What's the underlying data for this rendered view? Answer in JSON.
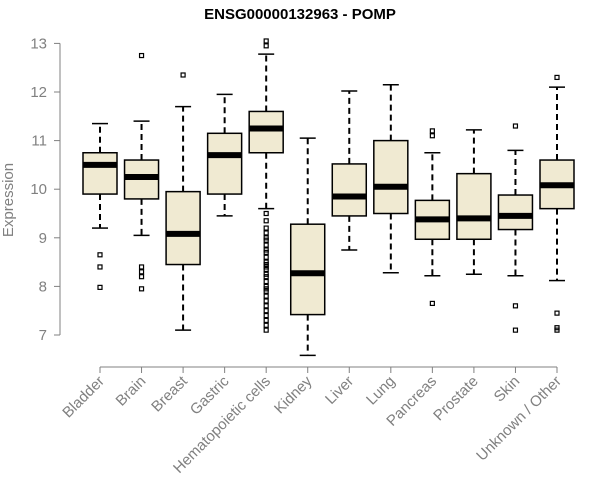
{
  "chart_data": {
    "type": "box",
    "title": "ENSG00000132963 - POMP",
    "xlabel": "",
    "ylabel": "Expression",
    "ylim": [
      6.55,
      13.2
    ],
    "yticks": [
      7,
      8,
      9,
      10,
      11,
      12,
      13
    ],
    "grid": false,
    "box_fill": "#f0ead2",
    "categories": [
      "Bladder",
      "Brain",
      "Breast",
      "Gastric",
      "Hematopoietic cells",
      "Kidney",
      "Liver",
      "Lung",
      "Pancreas",
      "Prostate",
      "Skin",
      "Unknown / Other"
    ],
    "boxes": [
      {
        "whisker_low": 9.2,
        "q1": 9.9,
        "median": 10.5,
        "q3": 10.75,
        "whisker_high": 11.35,
        "outliers": [
          8.65,
          8.4,
          7.98
        ]
      },
      {
        "whisker_low": 9.05,
        "q1": 9.8,
        "median": 10.25,
        "q3": 10.6,
        "whisker_high": 11.4,
        "outliers": [
          12.75,
          8.4,
          8.3,
          8.2,
          7.95
        ]
      },
      {
        "whisker_low": 7.1,
        "q1": 8.45,
        "median": 9.08,
        "q3": 9.95,
        "whisker_high": 11.7,
        "outliers": [
          12.35
        ]
      },
      {
        "whisker_low": 9.45,
        "q1": 9.9,
        "median": 10.7,
        "q3": 11.15,
        "whisker_high": 11.95,
        "outliers": []
      },
      {
        "whisker_low": 9.6,
        "q1": 10.75,
        "median": 11.25,
        "q3": 11.6,
        "whisker_high": 12.78,
        "outliers": [
          13.05,
          12.95,
          9.5,
          9.35,
          9.2,
          9.1,
          9.0,
          8.95,
          8.85,
          8.75,
          8.7,
          8.6,
          8.5,
          8.45,
          8.4,
          8.35,
          8.25,
          8.2,
          8.1,
          8.0,
          7.95,
          7.9,
          7.8,
          7.7,
          7.6,
          7.5,
          7.4,
          7.3,
          7.2,
          7.1
        ]
      },
      {
        "whisker_low": 6.58,
        "q1": 7.42,
        "median": 8.27,
        "q3": 9.28,
        "whisker_high": 11.05,
        "outliers": []
      },
      {
        "whisker_low": 8.75,
        "q1": 9.45,
        "median": 9.85,
        "q3": 10.52,
        "whisker_high": 12.02,
        "outliers": []
      },
      {
        "whisker_low": 8.28,
        "q1": 9.5,
        "median": 10.05,
        "q3": 11.0,
        "whisker_high": 12.15,
        "outliers": []
      },
      {
        "whisker_low": 8.22,
        "q1": 8.97,
        "median": 9.38,
        "q3": 9.77,
        "whisker_high": 10.75,
        "outliers": [
          11.2,
          11.1,
          7.65
        ]
      },
      {
        "whisker_low": 8.25,
        "q1": 8.97,
        "median": 9.4,
        "q3": 10.32,
        "whisker_high": 11.22,
        "outliers": []
      },
      {
        "whisker_low": 8.22,
        "q1": 9.17,
        "median": 9.45,
        "q3": 9.88,
        "whisker_high": 10.8,
        "outliers": [
          11.3,
          7.6,
          7.1
        ]
      },
      {
        "whisker_low": 8.12,
        "q1": 9.6,
        "median": 10.08,
        "q3": 10.6,
        "whisker_high": 12.1,
        "outliers": [
          12.3,
          7.45,
          7.15,
          7.1
        ]
      }
    ]
  }
}
